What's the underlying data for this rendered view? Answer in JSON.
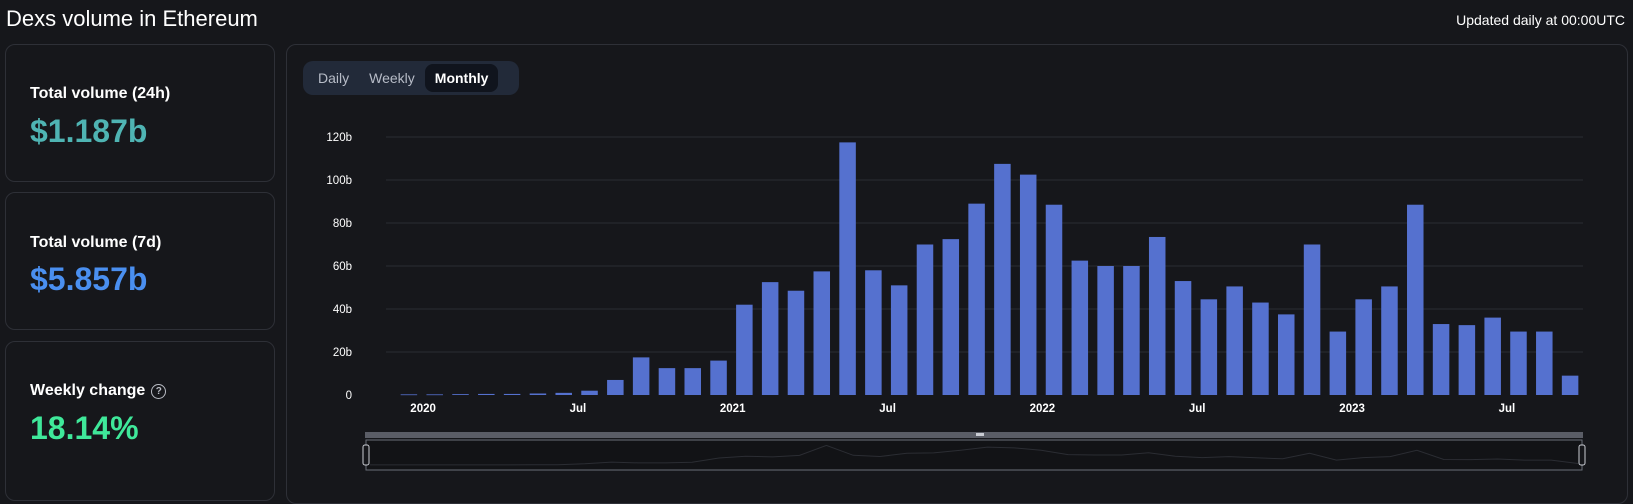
{
  "header": {
    "title": "Dexs volume in Ethereum",
    "updated": "Updated daily at 00:00UTC"
  },
  "stats": [
    {
      "label": "Total volume (24h)",
      "value": "$1.187b",
      "color": "#4fb4b3"
    },
    {
      "label": "Total volume (7d)",
      "value": "$5.857b",
      "color": "#4a8ff0"
    },
    {
      "label": "Weekly change",
      "value": "18.14%",
      "color": "#3fe89a"
    }
  ],
  "tabs": [
    {
      "label": "Daily",
      "active": false
    },
    {
      "label": "Weekly",
      "active": false
    },
    {
      "label": "Monthly",
      "active": true
    }
  ],
  "chart_data": {
    "type": "bar",
    "bar_color": "#5571cf",
    "y_ticks": [
      {
        "value": 0,
        "label": "0"
      },
      {
        "value": 20,
        "label": "20b"
      },
      {
        "value": 40,
        "label": "40b"
      },
      {
        "value": 60,
        "label": "60b"
      },
      {
        "value": 80,
        "label": "80b"
      },
      {
        "value": 100,
        "label": "100b"
      },
      {
        "value": 120,
        "label": "120b"
      }
    ],
    "ylim": [
      0,
      120
    ],
    "x_ticks": [
      {
        "index": 1,
        "label": "2020"
      },
      {
        "index": 7,
        "label": "Jul"
      },
      {
        "index": 13,
        "label": "2021"
      },
      {
        "index": 19,
        "label": "Jul"
      },
      {
        "index": 25,
        "label": "2022"
      },
      {
        "index": 31,
        "label": "Jul"
      },
      {
        "index": 37,
        "label": "2023"
      },
      {
        "index": 43,
        "label": "Jul"
      }
    ],
    "categories": [
      "2019-12",
      "2020-01",
      "2020-02",
      "2020-03",
      "2020-04",
      "2020-05",
      "2020-06",
      "2020-07",
      "2020-08",
      "2020-09",
      "2020-10",
      "2020-11",
      "2020-12",
      "2021-01",
      "2021-02",
      "2021-03",
      "2021-04",
      "2021-05",
      "2021-06",
      "2021-07",
      "2021-08",
      "2021-09",
      "2021-10",
      "2021-11",
      "2021-12",
      "2022-01",
      "2022-02",
      "2022-03",
      "2022-04",
      "2022-05",
      "2022-06",
      "2022-07",
      "2022-08",
      "2022-09",
      "2022-10",
      "2022-11",
      "2022-12",
      "2023-01",
      "2023-02",
      "2023-03",
      "2023-04",
      "2023-05",
      "2023-06",
      "2023-07",
      "2023-08",
      "2023-09"
    ],
    "values": [
      0.3,
      0.3,
      0.4,
      0.5,
      0.5,
      0.7,
      1.0,
      2.0,
      7.0,
      17.5,
      12.5,
      12.5,
      16.0,
      42.0,
      52.5,
      48.5,
      57.5,
      117.5,
      58.0,
      51.0,
      70.0,
      72.5,
      89.0,
      107.5,
      102.5,
      88.5,
      62.5,
      60.0,
      60.0,
      73.5,
      53.0,
      44.5,
      50.5,
      43.0,
      37.5,
      70.0,
      29.5,
      44.5,
      50.5,
      88.5,
      33.0,
      32.5,
      36.0,
      29.5,
      29.5,
      9.0
    ]
  }
}
